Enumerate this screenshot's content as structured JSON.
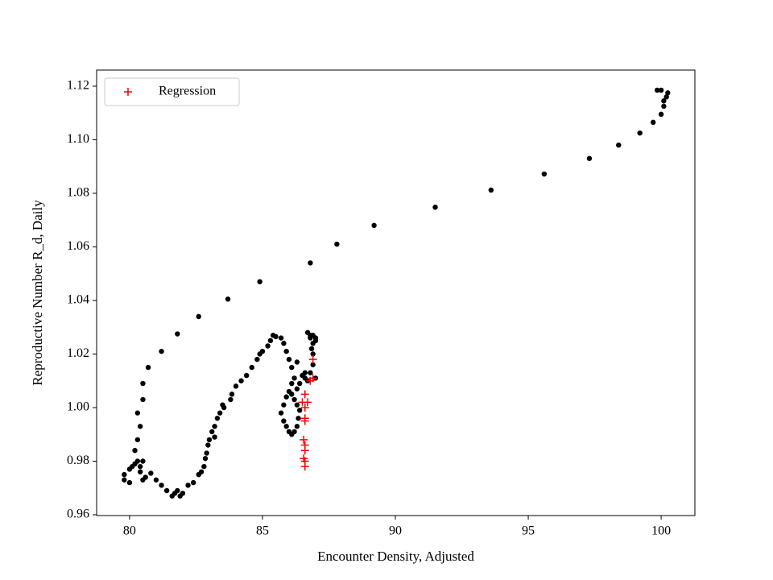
{
  "chart_data": {
    "type": "scatter",
    "x_label": "Encounter Density, Adjusted",
    "y_label": "Reproductive Number R_d, Daily",
    "xlim": [
      78.76,
      101.27
    ],
    "ylim": [
      0.9597,
      1.126
    ],
    "xticks": [
      80,
      85,
      90,
      95,
      100
    ],
    "yticks": [
      0.96,
      0.98,
      {
        "value": 1.0,
        "label": "1.00"
      },
      1.02,
      1.04,
      1.06,
      1.08,
      {
        "value": 1.1,
        "label": "1.10"
      },
      1.12
    ],
    "legend": "upper left",
    "series": [
      {
        "color": "#000000",
        "marker": "dot",
        "x": [
          80.5,
          80.5,
          80.7,
          81.2,
          81.8,
          82.6,
          83.7,
          84.9,
          86.8,
          87.8,
          89.2,
          91.5,
          93.6,
          95.6,
          97.3,
          98.4,
          99.2,
          99.7,
          100.0,
          100.1,
          100.1,
          100.2,
          100.25,
          100.0,
          99.85,
          79.8,
          79.8,
          80.0,
          80.0,
          80.1,
          80.2,
          80.3,
          80.4,
          80.4,
          80.5,
          80.5,
          80.6,
          80.2,
          80.3,
          80.3,
          80.4,
          80.8,
          81.0,
          81.2,
          81.4,
          81.6,
          81.7,
          81.8,
          81.9,
          82.0,
          82.2,
          82.4,
          82.6,
          82.7,
          82.8,
          82.85,
          82.9,
          82.95,
          83.0,
          83.1,
          83.2,
          83.2,
          83.3,
          83.4,
          83.5,
          83.55,
          83.8,
          83.85,
          84.0,
          84.2,
          84.4,
          84.6,
          84.8,
          84.9,
          85.0,
          85.2,
          85.3,
          85.4,
          85.5,
          85.7,
          85.8,
          85.9,
          86.0,
          86.1,
          86.2,
          86.1,
          86.0,
          85.9,
          85.8,
          85.7,
          85.8,
          85.9,
          86.0,
          86.1,
          86.2,
          86.3,
          86.35,
          86.4,
          86.3,
          86.2,
          86.1,
          86.3,
          86.4,
          86.5,
          86.6,
          86.3,
          86.6,
          86.7,
          86.8,
          86.9,
          86.9,
          86.85,
          86.9,
          87.0,
          87.0,
          86.9,
          86.8,
          86.7,
          86.8,
          87.0
        ],
        "values": [
          1.003,
          1.009,
          1.015,
          1.021,
          1.0275,
          1.034,
          1.0405,
          1.047,
          1.054,
          1.061,
          1.068,
          1.0748,
          1.0812,
          1.0872,
          1.093,
          1.098,
          1.1025,
          1.1065,
          1.1095,
          1.1125,
          1.1145,
          1.116,
          1.1175,
          1.1185,
          1.1185,
          0.973,
          0.975,
          0.972,
          0.977,
          0.978,
          0.979,
          0.98,
          0.978,
          0.976,
          0.98,
          0.973,
          0.974,
          0.984,
          0.988,
          0.998,
          0.993,
          0.9755,
          0.973,
          0.971,
          0.969,
          0.967,
          0.968,
          0.969,
          0.967,
          0.968,
          0.971,
          0.972,
          0.975,
          0.976,
          0.978,
          0.981,
          0.983,
          0.986,
          0.988,
          0.991,
          0.989,
          0.993,
          0.996,
          0.998,
          1.001,
          1.0,
          1.003,
          1.005,
          1.008,
          1.01,
          1.012,
          1.015,
          1.018,
          1.02,
          1.021,
          1.023,
          1.025,
          1.027,
          1.0265,
          1.026,
          1.024,
          1.021,
          1.018,
          1.015,
          1.011,
          1.009,
          1.006,
          1.004,
          1.001,
          0.998,
          0.995,
          0.993,
          0.991,
          0.99,
          0.991,
          0.993,
          0.996,
          0.999,
          1.001,
          1.003,
          1.005,
          1.007,
          1.009,
          1.012,
          1.013,
          1.017,
          1.011,
          1.01,
          1.013,
          1.016,
          1.02,
          1.022,
          1.024,
          1.025,
          1.026,
          1.027,
          1.027,
          1.028,
          1.026,
          1.011
        ]
      },
      {
        "name": "Regression",
        "color": "#ff0000",
        "marker": "plus",
        "x": [
          86.9,
          86.9,
          86.8,
          86.6,
          86.5,
          86.7,
          86.6,
          86.6,
          86.6,
          86.55,
          86.6,
          86.6,
          86.55,
          86.6,
          86.6
        ],
        "values": [
          1.018,
          1.011,
          1.01,
          1.005,
          1.002,
          1.002,
          1.0,
          0.996,
          0.995,
          0.988,
          0.986,
          0.984,
          0.981,
          0.98,
          0.978
        ]
      }
    ]
  }
}
